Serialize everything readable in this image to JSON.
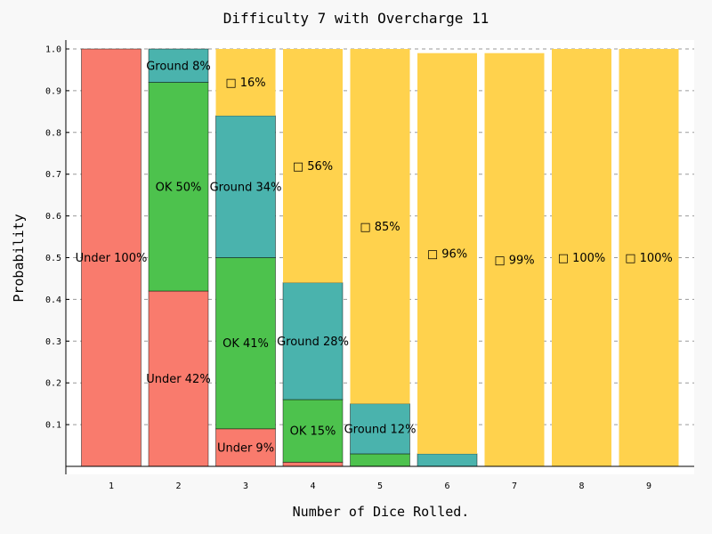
{
  "chart_data": {
    "type": "bar",
    "title": "Difficulty 7 with Overcharge 11",
    "xlabel": "Number of Dice Rolled.",
    "ylabel": "Probability",
    "categories": [
      "1",
      "2",
      "3",
      "4",
      "5",
      "6",
      "7",
      "8",
      "9"
    ],
    "ylim": [
      0,
      1.0
    ],
    "yticks": [
      "0.1",
      "0.2",
      "0.3",
      "0.4",
      "0.5",
      "0.6",
      "0.7",
      "0.8",
      "0.9",
      "1.0"
    ],
    "grid": true,
    "series": [
      {
        "key": "under",
        "color": "#f97b6d",
        "values": [
          1.0,
          0.42,
          0.09,
          0.01,
          0.0,
          0.0,
          0.0,
          0.0,
          0.0
        ],
        "labels": [
          "Under 100%",
          "Under 42%",
          "Under 9%",
          "",
          "",
          "",
          "",
          "",
          ""
        ]
      },
      {
        "key": "ok",
        "color": "#4dc24d",
        "values": [
          0.0,
          0.5,
          0.41,
          0.15,
          0.03,
          0.0,
          0.0,
          0.0,
          0.0
        ],
        "labels": [
          "",
          "OK 50%",
          "OK 41%",
          "OK 15%",
          "",
          "",
          "",
          "",
          ""
        ]
      },
      {
        "key": "ground",
        "color": "#4ab3ad",
        "values": [
          0.0,
          0.08,
          0.34,
          0.28,
          0.12,
          0.03,
          0.0,
          0.0,
          0.0
        ],
        "labels": [
          "",
          "Ground 8%",
          "Ground 34%",
          "Ground 28%",
          "Ground 12%",
          "",
          "",
          "",
          ""
        ]
      },
      {
        "key": "top",
        "color": "#ffd24d",
        "values": [
          0.0,
          0.0,
          0.16,
          0.56,
          0.85,
          0.96,
          0.99,
          1.0,
          1.0
        ],
        "labels": [
          "",
          "",
          "□ 16%",
          "□ 56%",
          "□ 85%",
          "□ 96%",
          "□ 99%",
          "□ 100%",
          "□ 100%"
        ]
      }
    ]
  }
}
